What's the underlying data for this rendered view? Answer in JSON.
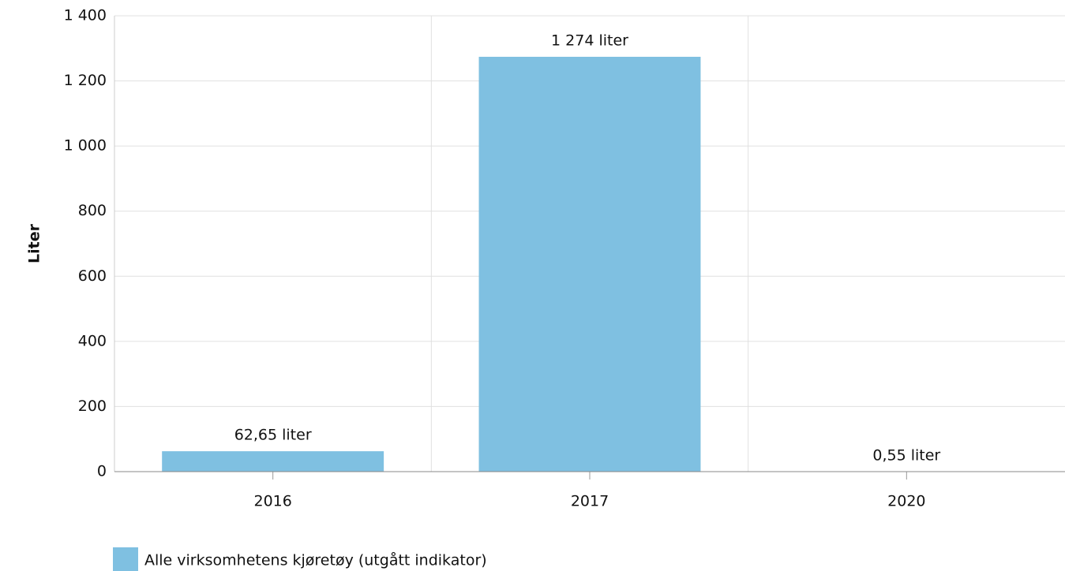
{
  "chart_data": {
    "type": "bar",
    "y_label": "Liter",
    "categories": [
      "2016",
      "2017",
      "2020"
    ],
    "series": [
      {
        "name": "Alle virksomhetens kjøretøy (utgått indikator)",
        "color": "#7fc0e1",
        "values": [
          62.65,
          1274,
          0.55
        ],
        "value_labels": [
          "62,65 liter",
          "1 274 liter",
          "0,55 liter"
        ]
      }
    ],
    "ylim": [
      0,
      1400
    ],
    "yticks": [
      0,
      200,
      400,
      600,
      800,
      {
        "value": 1000,
        "label": "1 000"
      },
      {
        "value": 1200,
        "label": "1 200"
      },
      {
        "value": 1400,
        "label": "1 400"
      }
    ],
    "grid": true,
    "legend": "bottom-left"
  }
}
